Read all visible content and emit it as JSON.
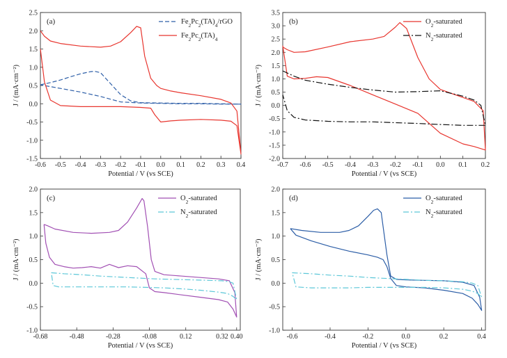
{
  "chart_data": [
    {
      "panel": "(a)",
      "type": "line",
      "xlabel": "Potential / V (vs SCE)",
      "ylabel": "J / (mA·cm⁻²)",
      "xlim": [
        -0.6,
        0.4
      ],
      "ylim": [
        -1.5,
        2.5
      ],
      "xticks": [
        -0.6,
        -0.5,
        -0.4,
        -0.3,
        -0.2,
        -0.1,
        0.0,
        0.1,
        0.2,
        0.3,
        0.4
      ],
      "xtick_labels": [
        "-0.6",
        "-0.5",
        "-0.4",
        "-0.3",
        "-0.2",
        "-0.1",
        "0.0",
        "0.1",
        "0.2",
        "0.3",
        "0.4"
      ],
      "yticks": [
        -1.5,
        -1.0,
        -0.5,
        0.0,
        0.5,
        1.0,
        1.5,
        2.0,
        2.5
      ],
      "ytick_labels": [
        "-1.5",
        "-1.0",
        "-0.5",
        "0.0",
        "0.5",
        "1.0",
        "1.5",
        "2.0",
        "2.5"
      ],
      "legend_position": "top-right",
      "series": [
        {
          "name": "Fe2Pc2(TA)4/rGO",
          "name_parts": [
            [
              "Fe",
              ""
            ],
            [
              "2",
              "sub"
            ],
            [
              "Pc",
              ""
            ],
            [
              "2",
              "sub"
            ],
            [
              "(TA)",
              ""
            ],
            [
              "4",
              "sub"
            ],
            [
              "/rGO",
              ""
            ]
          ],
          "color": "#2e5fa8",
          "dash": "6,3",
          "x": [
            -0.6,
            -0.55,
            -0.5,
            -0.45,
            -0.4,
            -0.35,
            -0.33,
            -0.3,
            -0.25,
            -0.2,
            -0.15,
            -0.1,
            0.0,
            0.1,
            0.2,
            0.3,
            0.4,
            0.3,
            0.2,
            0.1,
            0.0,
            -0.1,
            -0.2,
            -0.3,
            -0.4,
            -0.5,
            -0.6
          ],
          "y": [
            0.52,
            0.58,
            0.65,
            0.74,
            0.82,
            0.88,
            0.89,
            0.85,
            0.55,
            0.25,
            0.08,
            0.03,
            0.02,
            0.01,
            0.01,
            0.0,
            -0.01,
            -0.01,
            0.0,
            0.0,
            0.01,
            0.02,
            0.05,
            0.2,
            0.32,
            0.42,
            0.52
          ]
        },
        {
          "name": "Fe2Pc2(TA)4",
          "name_parts": [
            [
              "Fe",
              ""
            ],
            [
              "2",
              "sub"
            ],
            [
              "Pc",
              ""
            ],
            [
              "2",
              "sub"
            ],
            [
              "(TA)",
              ""
            ],
            [
              "4",
              "sub"
            ]
          ],
          "color": "#e8352e",
          "dash": "",
          "x": [
            -0.6,
            -0.58,
            -0.55,
            -0.5,
            -0.4,
            -0.3,
            -0.25,
            -0.2,
            -0.15,
            -0.12,
            -0.1,
            -0.08,
            -0.05,
            -0.02,
            0.0,
            0.05,
            0.1,
            0.2,
            0.3,
            0.35,
            0.38,
            0.4,
            0.38,
            0.35,
            0.3,
            0.2,
            0.1,
            0.05,
            0.0,
            -0.03,
            -0.05,
            -0.1,
            -0.2,
            -0.3,
            -0.4,
            -0.5,
            -0.55,
            -0.58,
            -0.6
          ],
          "y": [
            2.0,
            1.85,
            1.72,
            1.65,
            1.58,
            1.55,
            1.58,
            1.7,
            1.95,
            2.12,
            2.08,
            1.3,
            0.7,
            0.5,
            0.42,
            0.35,
            0.3,
            0.22,
            0.12,
            0.02,
            -0.2,
            -1.38,
            -0.6,
            -0.48,
            -0.45,
            -0.43,
            -0.45,
            -0.47,
            -0.5,
            -0.3,
            -0.12,
            -0.1,
            -0.08,
            -0.08,
            -0.08,
            -0.05,
            0.1,
            0.6,
            1.5
          ]
        }
      ]
    },
    {
      "panel": "(b)",
      "type": "line",
      "xlabel": "Potential / V (vs SCE)",
      "ylabel": "J / (mA·cm⁻²)",
      "xlim": [
        -0.7,
        0.2
      ],
      "ylim": [
        -2.0,
        3.5
      ],
      "xticks": [
        -0.7,
        -0.6,
        -0.5,
        -0.4,
        -0.3,
        -0.2,
        -0.1,
        0.0,
        0.1,
        0.2
      ],
      "xtick_labels": [
        "-0.7",
        "-0.6",
        "-0.5",
        "-0.4",
        "-0.3",
        "-0.2",
        "-0.1",
        "0.0",
        "0.1",
        "0.2"
      ],
      "yticks": [
        -2.0,
        -1.5,
        -1.0,
        -0.5,
        0.0,
        0.5,
        1.0,
        1.5,
        2.0,
        2.5,
        3.0,
        3.5
      ],
      "ytick_labels": [
        "-2.0",
        "-1.5",
        "-1.0",
        "-0.5",
        "0.0",
        "0.5",
        "1.0",
        "1.5",
        "2.0",
        "2.5",
        "3.0",
        "3.5"
      ],
      "legend_position": "top-right",
      "series": [
        {
          "name": "O2-saturated",
          "name_parts": [
            [
              "O",
              ""
            ],
            [
              "2",
              "sub"
            ],
            [
              "-saturated",
              ""
            ]
          ],
          "color": "#e8352e",
          "dash": "",
          "x": [
            -0.7,
            -0.68,
            -0.65,
            -0.6,
            -0.5,
            -0.4,
            -0.3,
            -0.25,
            -0.2,
            -0.18,
            -0.15,
            -0.1,
            -0.05,
            0.0,
            0.05,
            0.1,
            0.15,
            0.19,
            0.2,
            0.15,
            0.1,
            0.0,
            -0.1,
            -0.2,
            -0.3,
            -0.4,
            -0.5,
            -0.55,
            -0.6,
            -0.65,
            -0.68,
            -0.7
          ],
          "y": [
            2.2,
            2.1,
            2.0,
            2.02,
            2.2,
            2.4,
            2.5,
            2.6,
            2.95,
            3.12,
            2.9,
            1.8,
            1.0,
            0.6,
            0.45,
            0.3,
            0.15,
            -0.2,
            -1.68,
            -1.55,
            -1.45,
            -1.05,
            -0.3,
            0.05,
            0.4,
            0.75,
            1.05,
            1.08,
            1.02,
            1.0,
            1.1,
            2.25
          ]
        },
        {
          "name": "N2-saturated",
          "name_parts": [
            [
              "N",
              ""
            ],
            [
              "2",
              "sub"
            ],
            [
              "-saturated",
              ""
            ]
          ],
          "color": "#111111",
          "dash": "9,3,2,3",
          "x": [
            -0.7,
            -0.65,
            -0.6,
            -0.5,
            -0.4,
            -0.3,
            -0.2,
            -0.1,
            0.0,
            0.1,
            0.15,
            0.18,
            0.2,
            0.1,
            0.0,
            -0.1,
            -0.2,
            -0.3,
            -0.4,
            -0.5,
            -0.6,
            -0.65,
            -0.68,
            -0.7
          ],
          "y": [
            1.3,
            1.1,
            0.95,
            0.8,
            0.68,
            0.58,
            0.5,
            0.52,
            0.55,
            0.35,
            0.2,
            0.0,
            -0.75,
            -0.75,
            -0.72,
            -0.68,
            -0.65,
            -0.62,
            -0.62,
            -0.6,
            -0.55,
            -0.45,
            -0.2,
            0.4
          ]
        }
      ]
    },
    {
      "panel": "(c)",
      "type": "line",
      "xlabel": "Potential / V (vs SCE)",
      "ylabel": "J / (mA·cm⁻²)",
      "xlim": [
        -0.68,
        0.42
      ],
      "ylim": [
        -1.0,
        2.0
      ],
      "xticks": [
        -0.68,
        -0.48,
        -0.28,
        -0.08,
        0.12,
        0.32,
        0.4
      ],
      "xtick_labels": [
        "-0.68",
        "-0.48",
        "-0.28",
        "-0.08",
        "0.12",
        "0.32",
        "0.40"
      ],
      "yticks": [
        -1.0,
        -0.5,
        0.0,
        0.5,
        1.0,
        1.5,
        2.0
      ],
      "ytick_labels": [
        "-1.0",
        "-0.5",
        "0.0",
        "0.5",
        "1.0",
        "1.5",
        "2.0"
      ],
      "legend_position": "top-right",
      "series": [
        {
          "name": "O2-saturated",
          "name_parts": [
            [
              "O",
              ""
            ],
            [
              "2",
              "sub"
            ],
            [
              "-saturated",
              ""
            ]
          ],
          "color": "#a14fb3",
          "dash": "",
          "x": [
            -0.66,
            -0.64,
            -0.6,
            -0.5,
            -0.4,
            -0.3,
            -0.25,
            -0.2,
            -0.15,
            -0.12,
            -0.11,
            -0.09,
            -0.07,
            -0.05,
            0.0,
            0.1,
            0.2,
            0.3,
            0.36,
            0.39,
            0.4,
            0.38,
            0.35,
            0.3,
            0.2,
            0.1,
            0.0,
            -0.05,
            -0.08,
            -0.1,
            -0.15,
            -0.2,
            -0.25,
            -0.3,
            -0.35,
            -0.4,
            -0.45,
            -0.5,
            -0.55,
            -0.6,
            -0.63,
            -0.65,
            -0.66
          ],
          "y": [
            1.25,
            1.22,
            1.15,
            1.08,
            1.06,
            1.08,
            1.12,
            1.3,
            1.6,
            1.8,
            1.75,
            1.2,
            0.5,
            0.25,
            0.18,
            0.15,
            0.12,
            0.09,
            0.05,
            -0.2,
            -0.72,
            -0.55,
            -0.4,
            -0.35,
            -0.3,
            -0.25,
            -0.2,
            -0.18,
            -0.1,
            0.2,
            0.35,
            0.37,
            0.33,
            0.4,
            0.32,
            0.35,
            0.33,
            0.32,
            0.35,
            0.4,
            0.55,
            0.85,
            1.25
          ]
        },
        {
          "name": "N2-saturated",
          "name_parts": [
            [
              "N",
              ""
            ],
            [
              "2",
              "sub"
            ],
            [
              "-saturated",
              ""
            ]
          ],
          "color": "#5cc7d8",
          "dash": "8,3,2,3",
          "x": [
            -0.62,
            -0.55,
            -0.45,
            -0.35,
            -0.25,
            -0.15,
            -0.05,
            0.05,
            0.15,
            0.25,
            0.32,
            0.36,
            0.38,
            0.4,
            0.38,
            0.35,
            0.3,
            0.2,
            0.1,
            0.0,
            -0.1,
            -0.2,
            -0.3,
            -0.4,
            -0.5,
            -0.58,
            -0.61,
            -0.62
          ],
          "y": [
            0.22,
            0.2,
            0.18,
            0.15,
            0.13,
            0.11,
            0.09,
            0.08,
            0.07,
            0.06,
            0.05,
            0.03,
            0.0,
            -0.35,
            -0.28,
            -0.22,
            -0.19,
            -0.15,
            -0.12,
            -0.1,
            -0.09,
            -0.08,
            -0.08,
            -0.08,
            -0.08,
            -0.08,
            -0.05,
            0.22
          ]
        }
      ]
    },
    {
      "panel": "(d)",
      "type": "line",
      "xlabel": "Potential / V (vs SCE)",
      "ylabel": "J / (mA·cm⁻²)",
      "xlim": [
        -0.65,
        0.42
      ],
      "ylim": [
        -1.0,
        2.0
      ],
      "xticks": [
        -0.6,
        -0.4,
        -0.2,
        0.0,
        0.2,
        0.4
      ],
      "xtick_labels": [
        "-0.6",
        "-0.4",
        "-0.2",
        "0.0",
        "0.2",
        "0.4"
      ],
      "yticks": [
        -1.0,
        -0.5,
        0.0,
        0.5,
        1.0,
        1.5,
        2.0
      ],
      "ytick_labels": [
        "-1.0",
        "-0.5",
        "0.0",
        "0.5",
        "1.0",
        "1.5",
        "2.0"
      ],
      "legend_position": "top-right",
      "series": [
        {
          "name": "O2-saturated",
          "name_parts": [
            [
              "O",
              ""
            ],
            [
              "2",
              "sub"
            ],
            [
              "-saturated",
              ""
            ]
          ],
          "color": "#2b5da6",
          "dash": "",
          "x": [
            -0.61,
            -0.55,
            -0.45,
            -0.35,
            -0.3,
            -0.25,
            -0.2,
            -0.17,
            -0.15,
            -0.13,
            -0.12,
            -0.1,
            -0.08,
            -0.05,
            0.0,
            0.1,
            0.2,
            0.3,
            0.36,
            0.39,
            0.4,
            0.38,
            0.35,
            0.3,
            0.2,
            0.1,
            0.0,
            -0.05,
            -0.08,
            -0.1,
            -0.12,
            -0.15,
            -0.2,
            -0.3,
            -0.4,
            -0.5,
            -0.58,
            -0.61
          ],
          "y": [
            1.16,
            1.12,
            1.08,
            1.08,
            1.12,
            1.22,
            1.42,
            1.55,
            1.58,
            1.5,
            1.2,
            0.6,
            0.15,
            0.08,
            0.07,
            0.06,
            0.05,
            0.02,
            -0.05,
            -0.3,
            -0.58,
            -0.45,
            -0.32,
            -0.22,
            -0.15,
            -0.1,
            -0.08,
            -0.05,
            0.1,
            0.35,
            0.5,
            0.55,
            0.6,
            0.68,
            0.78,
            0.9,
            1.02,
            1.16
          ]
        },
        {
          "name": "N2-saturated",
          "name_parts": [
            [
              "N",
              ""
            ],
            [
              "2",
              "sub"
            ],
            [
              "-saturated",
              ""
            ]
          ],
          "color": "#5cc7d8",
          "dash": "8,3,2,3",
          "x": [
            -0.6,
            -0.5,
            -0.4,
            -0.3,
            -0.2,
            -0.1,
            0.0,
            0.1,
            0.2,
            0.3,
            0.35,
            0.38,
            0.4,
            0.38,
            0.35,
            0.3,
            0.2,
            0.1,
            0.0,
            -0.1,
            -0.2,
            -0.3,
            -0.4,
            -0.5,
            -0.58,
            -0.6
          ],
          "y": [
            0.22,
            0.2,
            0.17,
            0.15,
            0.12,
            0.1,
            0.08,
            0.06,
            0.05,
            0.03,
            0.0,
            -0.05,
            -0.3,
            -0.22,
            -0.17,
            -0.13,
            -0.1,
            -0.09,
            -0.09,
            -0.09,
            -0.09,
            -0.1,
            -0.1,
            -0.1,
            -0.08,
            0.22
          ]
        }
      ]
    }
  ]
}
